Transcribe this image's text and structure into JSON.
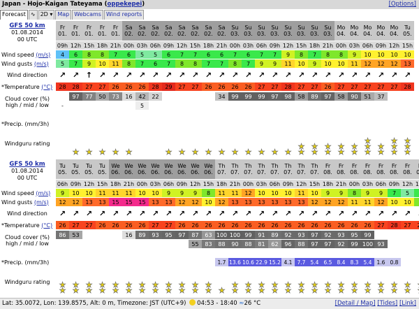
{
  "title": "Japan - Hojo-Kaigan Tateyama",
  "owner": "oppekepei",
  "options_link": "[Options]",
  "tabs": [
    "Forecast",
    "∿",
    "2D ▾",
    "Map",
    "Webcams",
    "Wind reports"
  ],
  "labels": {
    "wind_speed": "Wind speed",
    "wind_gusts": "Wind gusts",
    "speed_unit": "(m/s)",
    "wind_direction": "Wind direction",
    "temperature": "*Temperature",
    "temp_unit": "(°C)",
    "cloud_cover": "Cloud cover (%)",
    "cloud_layers": "high / mid / low",
    "precip": "*Precip. (mm/3h)",
    "rating": "Windguru rating"
  },
  "sections": [
    {
      "model": "GFS 50 km",
      "date": "01.08.2014",
      "utc": "00 UTC",
      "days": [
        "Fr",
        "Fr",
        "Fr",
        "Fr",
        "Fr",
        "Sa",
        "Sa",
        "Sa",
        "Sa",
        "Sa",
        "Sa",
        "Sa",
        "Sa",
        "Su",
        "Su",
        "Su",
        "Su",
        "Su",
        "Su",
        "Su",
        "Su",
        "Mo",
        "Mo",
        "Mo",
        "Mo",
        "Mo",
        "Tu"
      ],
      "dates": [
        "01.",
        "01.",
        "01.",
        "01.",
        "01.",
        "02.",
        "02.",
        "02.",
        "02.",
        "02.",
        "02.",
        "02.",
        "02.",
        "03.",
        "03.",
        "03.",
        "03.",
        "03.",
        "03.",
        "03.",
        "03.",
        "04.",
        "04.",
        "04.",
        "04.",
        "04.",
        "05."
      ],
      "hours": [
        "09h",
        "12h",
        "15h",
        "18h",
        "21h",
        "00h",
        "03h",
        "06h",
        "09h",
        "12h",
        "15h",
        "18h",
        "21h",
        "00h",
        "03h",
        "06h",
        "09h",
        "12h",
        "15h",
        "18h",
        "21h",
        "00h",
        "03h",
        "06h",
        "09h",
        "12h",
        "15h"
      ],
      "wind_speed": [
        4,
        6,
        8,
        8,
        7,
        6,
        5,
        5,
        6,
        7,
        7,
        6,
        6,
        7,
        6,
        7,
        7,
        9,
        8,
        7,
        8,
        8,
        9,
        10,
        10,
        10,
        10
      ],
      "wind_gusts": [
        5,
        7,
        9,
        10,
        11,
        8,
        7,
        6,
        7,
        8,
        8,
        7,
        7,
        8,
        7,
        9,
        9,
        11,
        10,
        9,
        10,
        10,
        11,
        12,
        12,
        12,
        13
      ],
      "wind_dir": [
        "↗",
        "↗",
        "↑",
        "↗",
        "↗",
        "↗",
        "↗",
        "↗",
        "↗",
        "↗",
        "↗",
        "↗",
        "↗",
        "↗",
        "↗",
        "↗",
        "↗",
        "↗",
        "↗",
        "↗",
        "↗",
        "↗",
        "↗",
        "↗",
        "↗",
        "↗",
        "↗"
      ],
      "temperature": [
        28,
        28,
        27,
        27,
        26,
        26,
        26,
        28,
        29,
        27,
        27,
        26,
        26,
        26,
        26,
        27,
        27,
        28,
        27,
        27,
        26,
        27,
        27,
        27,
        27,
        27,
        28
      ],
      "cloud_high": [
        "",
        "97",
        "77",
        "50",
        "73",
        "16",
        "42",
        "22",
        "",
        "",
        "",
        "",
        "34",
        "99",
        "99",
        "99",
        "97",
        "98",
        "58",
        "89",
        "97",
        "58",
        "90",
        "51",
        "37",
        "",
        ""
      ],
      "cloud_mid": [
        "-",
        "",
        "",
        "",
        "",
        "",
        "5",
        "",
        "",
        "",
        "",
        "",
        "",
        "",
        "",
        "",
        "",
        "",
        "",
        "",
        "",
        "",
        "",
        "",
        "",
        "",
        ""
      ],
      "cloud_low": [
        "",
        "",
        "",
        "",
        "",
        "",
        "",
        "",
        "",
        "",
        "",
        "",
        "",
        "",
        "",
        "",
        "",
        "",
        "",
        "",
        "",
        "",
        "",
        "",
        "",
        "",
        ""
      ],
      "precip": [
        "",
        "",
        "",
        "",
        "",
        "",
        "",
        "",
        "",
        "",
        "",
        "",
        "",
        "",
        "",
        "",
        "",
        "",
        "",
        "",
        "",
        "",
        "",
        "",
        "",
        "",
        ""
      ],
      "rating": [
        0,
        1,
        1,
        1,
        1,
        1,
        0,
        0,
        1,
        1,
        1,
        1,
        1,
        1,
        1,
        1,
        1,
        1,
        2,
        2,
        2,
        2,
        2,
        3,
        2,
        3,
        3
      ]
    },
    {
      "model": "GFS 50 km",
      "date": "01.08.2014",
      "utc": "00 UTC",
      "days": [
        "Tu",
        "Tu",
        "Tu",
        "Tu",
        "We",
        "We",
        "We",
        "We",
        "We",
        "We",
        "We",
        "We",
        "Th",
        "Th",
        "Th",
        "Th",
        "Th",
        "Th",
        "Th",
        "Th",
        "Fr",
        "Fr",
        "Fr",
        "Fr",
        "Fr",
        "Fr",
        "Fr",
        "Fr"
      ],
      "dates": [
        "05.",
        "05.",
        "05.",
        "05.",
        "06.",
        "06.",
        "06.",
        "06.",
        "06.",
        "06.",
        "06.",
        "06.",
        "07.",
        "07.",
        "07.",
        "07.",
        "07.",
        "07.",
        "07.",
        "07.",
        "08.",
        "08.",
        "08.",
        "08.",
        "08.",
        "08.",
        "08.",
        "08."
      ],
      "hours": [
        "06h",
        "09h",
        "12h",
        "15h",
        "18h",
        "21h",
        "00h",
        "03h",
        "06h",
        "09h",
        "12h",
        "15h",
        "18h",
        "21h",
        "00h",
        "03h",
        "06h",
        "09h",
        "12h",
        "15h",
        "18h",
        "21h",
        "00h",
        "03h",
        "06h",
        "09h",
        "12h",
        "15h"
      ],
      "wind_speed": [
        9,
        10,
        10,
        11,
        11,
        11,
        10,
        10,
        9,
        9,
        9,
        8,
        11,
        11,
        12,
        10,
        10,
        10,
        11,
        10,
        9,
        9,
        8,
        9,
        9,
        7,
        5,
        6
      ],
      "wind_gusts": [
        12,
        12,
        13,
        13,
        15,
        15,
        15,
        13,
        13,
        12,
        12,
        10,
        12,
        13,
        13,
        13,
        13,
        13,
        13,
        12,
        12,
        12,
        11,
        11,
        12,
        10,
        10,
        8
      ],
      "wind_dir": [
        "↗",
        "↗",
        "↗",
        "↗",
        "↗",
        "↗",
        "↗",
        "↗",
        "↗",
        "↗",
        "↗",
        "↗",
        "↗",
        "↗",
        "↗",
        "↗",
        "↗",
        "↗",
        "↗",
        "↗",
        "↗",
        "↗",
        "↗",
        "↗",
        "↗",
        "↗",
        "↗",
        "↗"
      ],
      "temperature": [
        26,
        27,
        27,
        26,
        26,
        26,
        26,
        27,
        27,
        26,
        26,
        26,
        26,
        26,
        26,
        26,
        26,
        26,
        26,
        26,
        26,
        26,
        26,
        26,
        27,
        28,
        27,
        27
      ],
      "cloud_high": [
        "86",
        "53",
        "",
        "",
        "",
        "16",
        "89",
        "93",
        "95",
        "97",
        "87",
        "63",
        "100",
        "100",
        "99",
        "91",
        "89",
        "92",
        "93",
        "97",
        "92",
        "93",
        "95",
        "99",
        "",
        "",
        "",
        ""
      ],
      "cloud_mid": [
        "",
        "",
        "",
        "",
        "",
        "",
        "",
        "",
        "",
        "",
        "55",
        "83",
        "88",
        "90",
        "88",
        "81",
        "62",
        "96",
        "88",
        "97",
        "97",
        "92",
        "99",
        "100",
        "93",
        "",
        "",
        ""
      ],
      "cloud_low": [
        "",
        "",
        "",
        "",
        "",
        "",
        "",
        "",
        "",
        "",
        "",
        "",
        "",
        "",
        "",
        "",
        "",
        "",
        "",
        "",
        "",
        "",
        "",
        "",
        "",
        "",
        "",
        ""
      ],
      "precip": [
        "",
        "",
        "",
        "",
        "",
        "",
        "",
        "",
        "",
        "",
        "",
        "",
        "1.7",
        "13.6",
        "10.6",
        "22.9",
        "15.2",
        "4.1",
        "7.7",
        "5.4",
        "6.5",
        "8.4",
        "8.3",
        "5.4",
        "1.6",
        "0.8",
        "",
        ""
      ],
      "rating": [
        2,
        2,
        2,
        2,
        2,
        2,
        2,
        2,
        2,
        2,
        2,
        2,
        1,
        2,
        2,
        2,
        2,
        2,
        2,
        2,
        2,
        2,
        2,
        2,
        2,
        2,
        2,
        2
      ]
    }
  ],
  "footer": {
    "lat": "Lat: 35.0072",
    "lon": "Lon: 139.8575",
    "alt": "Alt: 0 m",
    "tz": "Timezone: JST (UTC+9)",
    "sun": "04:53 - 18:40",
    "water": "26 °C",
    "links": [
      "[Detail / Map]",
      "[Tides]",
      "[Link]"
    ]
  },
  "colors": {
    "wind_scale": {
      "4": "#5fc1f7",
      "5": "#7fe9a0",
      "6": "#3ae84b",
      "7": "#3ae84b",
      "8": "#7fe72b",
      "9": "#d0f224",
      "10": "#fff12f",
      "11": "#ffd52c",
      "12": "#ffa424",
      "13": "#ff6a2a",
      "15": "#f42a8c"
    },
    "temp_scale": {
      "26": "#fa5e22",
      "27": "#f8431f",
      "28": "#f0351f",
      "29": "#e4291d"
    },
    "precip": "#5a5ae0"
  }
}
